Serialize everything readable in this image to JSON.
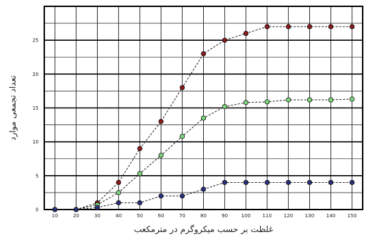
{
  "chart_data": {
    "type": "line",
    "title": "",
    "xlabel": "غلظت بر حسب میکروگرم در مترمکعب",
    "ylabel": "تعداد تجمعی موارد",
    "x": [
      10,
      20,
      30,
      40,
      50,
      60,
      70,
      80,
      90,
      100,
      110,
      120,
      130,
      140,
      150
    ],
    "xlim": [
      5,
      155
    ],
    "ylim": [
      0,
      30
    ],
    "xticks": [
      "10",
      "20",
      "30",
      "40",
      "50",
      "60",
      "70",
      "80",
      "90",
      "100",
      "110",
      "120",
      "130",
      "140",
      "150"
    ],
    "yticks": [
      0,
      5,
      10,
      15,
      20,
      25
    ],
    "grid": true,
    "legend": "none",
    "series": [
      {
        "color": "#8b1a1a",
        "values": [
          0,
          0,
          1,
          4,
          9,
          13,
          18,
          23,
          25,
          26,
          27,
          27,
          27,
          27,
          27
        ]
      },
      {
        "color": "#7dd87d",
        "values": [
          0,
          0,
          0.7,
          2.5,
          5.3,
          8,
          10.8,
          13.5,
          15.2,
          15.8,
          15.9,
          16.2,
          16.2,
          16.2,
          16.3
        ]
      },
      {
        "color": "#2b2f7a",
        "values": [
          0,
          0,
          0.3,
          1,
          1,
          2,
          2,
          3,
          4,
          4,
          4,
          4,
          4,
          4,
          4
        ]
      }
    ]
  }
}
